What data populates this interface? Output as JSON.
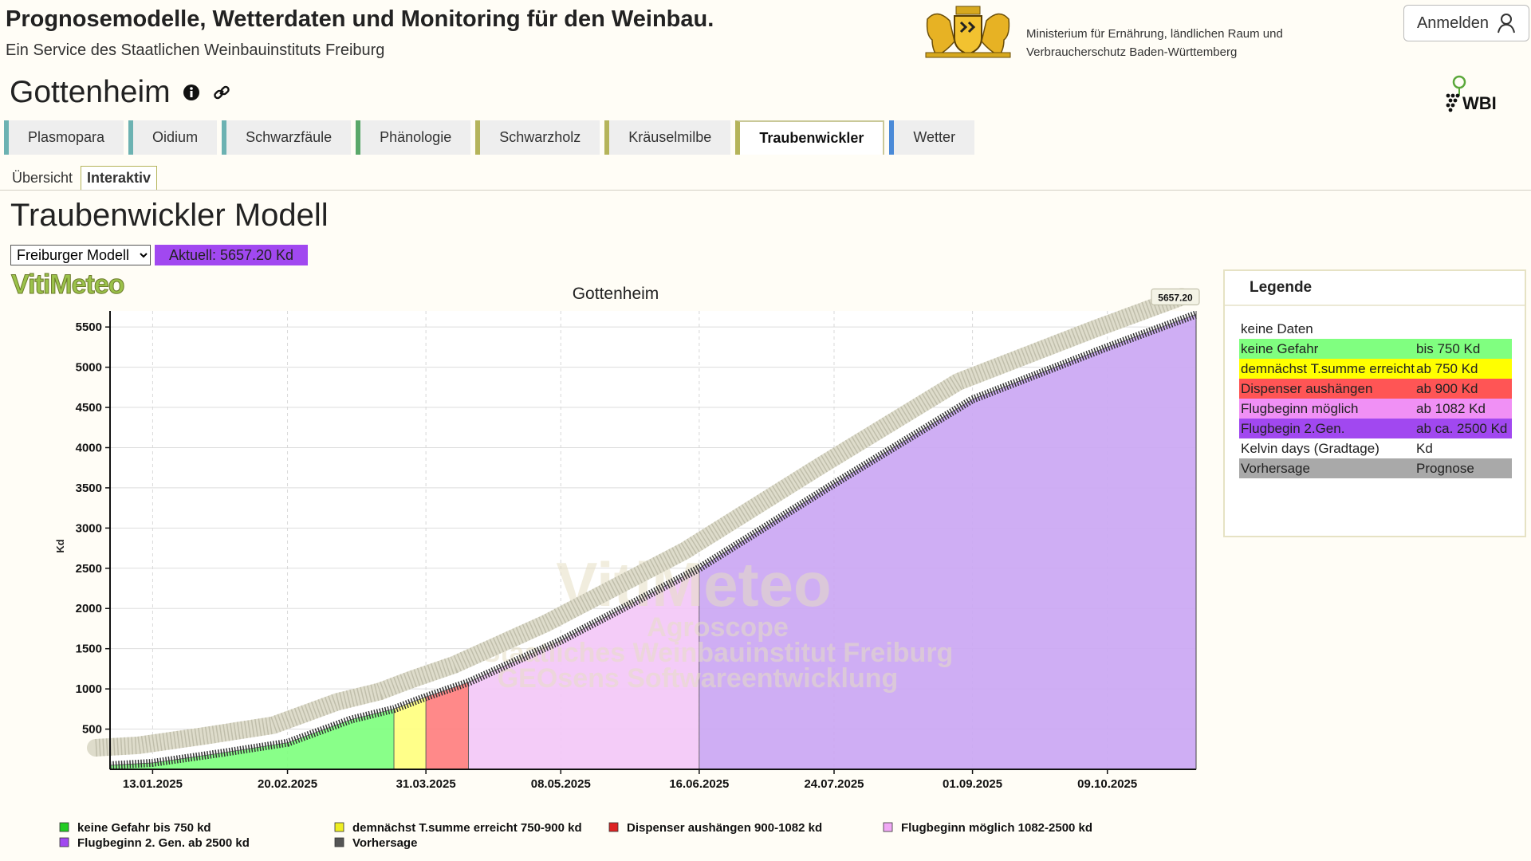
{
  "header": {
    "title": "Prognosemodelle, Wetterdaten und Monitoring für den Weinbau.",
    "subtitle": "Ein Service des Staatlichen Weinbauinstituts Freiburg",
    "ministry_line1": "Ministerium für Ernährung, ländlichen Raum und",
    "ministry_line2": "Verbraucherschutz Baden-Württemberg",
    "login_label": "Anmelden",
    "wbi_label": "WBI"
  },
  "location": {
    "name": "Gottenheim"
  },
  "tabs": [
    {
      "label": "Plasmopara",
      "active": false
    },
    {
      "label": "Oidium",
      "active": false
    },
    {
      "label": "Schwarzfäule",
      "active": false
    },
    {
      "label": "Phänologie",
      "active": false
    },
    {
      "label": "Schwarzholz",
      "active": false
    },
    {
      "label": "Kräuselmilbe",
      "active": false
    },
    {
      "label": "Traubenwickler",
      "active": true
    },
    {
      "label": "Wetter",
      "active": false
    }
  ],
  "subtabs": [
    {
      "label": "Übersicht",
      "active": false
    },
    {
      "label": "Interaktiv",
      "active": true
    }
  ],
  "page": {
    "title": "Traubenwickler Modell",
    "model_select_value": "Freiburger Modell",
    "current_badge": "Aktuell: 5657.20 Kd",
    "logo_text": "VitiMeteo"
  },
  "legend": {
    "title": "Legende",
    "rows": [
      {
        "label": "keine Daten",
        "value": "",
        "color": "#ffffff"
      },
      {
        "label": "keine Gefahr",
        "value": "bis 750 Kd",
        "color": "#80ff80"
      },
      {
        "label": "demnächst T.summe erreicht",
        "value": "ab 750 Kd",
        "color": "#ffff00"
      },
      {
        "label": "Dispenser aushängen",
        "value": "ab 900 Kd",
        "color": "#ff5555"
      },
      {
        "label": "Flugbeginn möglich",
        "value": "ab 1082 Kd",
        "color": "#f090f5"
      },
      {
        "label": "Flugbegin 2.Gen.",
        "value": "ab ca. 2500 Kd",
        "color": "#a148f0"
      },
      {
        "label": "Kelvin days (Gradtage)",
        "value": "Kd",
        "color": "#ffffff"
      },
      {
        "label": "Vorhersage",
        "value": "Prognose",
        "color": "#a9a9a9"
      }
    ]
  },
  "chart_data": {
    "type": "area",
    "title": "Gottenheim",
    "ylabel": "Kd",
    "xlabel": "",
    "x_range": [
      "2025-01-01",
      "2025-11-03"
    ],
    "ylim": [
      0,
      5700
    ],
    "y_ticks": [
      500,
      1000,
      1500,
      2000,
      2500,
      3000,
      3500,
      4000,
      4500,
      5000,
      5500
    ],
    "x_tick_labels": [
      "13.01.2025",
      "20.02.2025",
      "31.03.2025",
      "08.05.2025",
      "16.06.2025",
      "24.07.2025",
      "01.09.2025",
      "09.10.2025"
    ],
    "x": [
      "2025-01-01",
      "2025-01-13",
      "2025-02-01",
      "2025-02-20",
      "2025-03-10",
      "2025-03-22",
      "2025-03-31",
      "2025-04-12",
      "2025-05-08",
      "2025-06-16",
      "2025-07-24",
      "2025-09-01",
      "2025-10-09",
      "2025-11-03"
    ],
    "values": [
      50,
      80,
      200,
      330,
      620,
      750,
      900,
      1082,
      1600,
      2500,
      3550,
      4600,
      5250,
      5657.2
    ],
    "zones": [
      {
        "name": "keine Gefahr bis 750 kd",
        "from": "2025-01-01",
        "to": "2025-03-22",
        "color": "#80ff80"
      },
      {
        "name": "demnächst T.summe erreicht 750-900 kd",
        "from": "2025-03-22",
        "to": "2025-03-31",
        "color": "#ffff80"
      },
      {
        "name": "Dispenser aushängen 900-1082 kd",
        "from": "2025-03-31",
        "to": "2025-04-12",
        "color": "#ff8080"
      },
      {
        "name": "Flugbeginn möglich 1082-2500 kd",
        "from": "2025-04-12",
        "to": "2025-06-16",
        "color": "#f4c8f8"
      },
      {
        "name": "Flugbeginn 2. Gen. ab 2500 kd",
        "from": "2025-06-16",
        "to": "2025-11-03",
        "color": "#cca8f4"
      }
    ],
    "last_value_label": "5657.20",
    "watermark_lines": [
      "VitiMeteo",
      "Agroscope",
      "Staatliches Weinbauinstitut Freiburg",
      "GEOsens Softwareentwicklung"
    ],
    "bottom_legend": [
      {
        "label": "keine Gefahr bis 750 kd",
        "color": "#22cc22"
      },
      {
        "label": "demnächst T.summe erreicht 750-900 kd",
        "color": "#eeee22"
      },
      {
        "label": "Dispenser aushängen 900-1082 kd",
        "color": "#dd2222"
      },
      {
        "label": "Flugbeginn möglich 1082-2500 kd",
        "color": "#f0a8f5"
      },
      {
        "label": "Flugbeginn 2. Gen. ab 2500 kd",
        "color": "#a148f0"
      },
      {
        "label": "Vorhersage",
        "color": "#555555"
      }
    ]
  }
}
